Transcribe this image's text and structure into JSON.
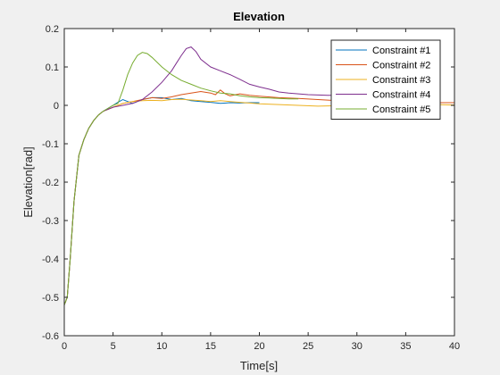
{
  "chart_data": {
    "type": "line",
    "title": "Elevation",
    "xlabel": "Time[s]",
    "ylabel": "Elevation[rad]",
    "xlim": [
      0,
      40
    ],
    "ylim": [
      -0.6,
      0.2
    ],
    "xticks": [
      0,
      5,
      10,
      15,
      20,
      25,
      30,
      35,
      40
    ],
    "yticks": [
      0.2,
      0.1,
      0,
      -0.1,
      -0.2,
      -0.3,
      -0.4,
      -0.5,
      -0.6
    ],
    "xtick_labels": [
      "0",
      "5",
      "10",
      "15",
      "20",
      "25",
      "30",
      "35",
      "40"
    ],
    "ytick_labels": [
      "0.2",
      "0.1",
      "0",
      "-0.1",
      "-0.2",
      "-0.3",
      "-0.4",
      "-0.5",
      "-0.6"
    ],
    "grid": false,
    "legend_position": "top-right",
    "series": [
      {
        "name": "Constraint #1",
        "color": "#0072BD",
        "x": [
          0,
          0.3,
          0.6,
          1.0,
          1.5,
          2.0,
          2.5,
          3.0,
          3.5,
          4.0,
          5.0,
          5.5,
          6.0,
          6.5,
          7.0,
          7.5,
          8.0,
          9.0,
          10.0,
          11.0,
          12.0,
          13.0,
          14.0,
          15.0,
          16.0,
          17.0,
          18.0,
          19.0,
          20.0
        ],
        "y": [
          -0.52,
          -0.5,
          -0.4,
          -0.25,
          -0.13,
          -0.09,
          -0.06,
          -0.04,
          -0.025,
          -0.015,
          0.0,
          0.008,
          0.015,
          0.01,
          0.005,
          0.01,
          0.015,
          0.02,
          0.02,
          0.015,
          0.018,
          0.012,
          0.01,
          0.008,
          0.005,
          0.007,
          0.006,
          0.007,
          0.007
        ]
      },
      {
        "name": "Constraint #2",
        "color": "#D95319",
        "x": [
          0,
          0.3,
          0.6,
          1.0,
          1.5,
          2.0,
          2.5,
          3.0,
          3.5,
          4.0,
          5.0,
          6.0,
          7.0,
          8.0,
          9.0,
          10.0,
          11.0,
          12.0,
          13.0,
          14.0,
          15.0,
          15.5,
          16.0,
          16.5,
          17.0,
          18.0,
          19.0,
          20.0,
          22.0,
          24.0,
          26.0,
          28.0,
          30.0,
          32.0,
          34.0,
          36.0,
          38.0,
          40.0
        ],
        "y": [
          -0.52,
          -0.5,
          -0.4,
          -0.25,
          -0.13,
          -0.09,
          -0.06,
          -0.04,
          -0.025,
          -0.015,
          -0.005,
          0.005,
          0.01,
          0.015,
          0.02,
          0.018,
          0.022,
          0.028,
          0.032,
          0.036,
          0.032,
          0.028,
          0.04,
          0.03,
          0.025,
          0.03,
          0.026,
          0.024,
          0.02,
          0.018,
          0.015,
          0.012,
          0.01,
          0.01,
          0.009,
          0.008,
          0.007,
          0.007
        ]
      },
      {
        "name": "Constraint #3",
        "color": "#EDB120",
        "x": [
          0,
          0.3,
          0.6,
          1.0,
          1.5,
          2.0,
          2.5,
          3.0,
          3.5,
          4.0,
          5.0,
          6.0,
          7.0,
          8.0,
          9.0,
          10.0,
          11.0,
          12.0,
          13.0,
          14.0,
          15.0,
          16.0,
          17.0,
          18.0,
          19.0,
          20.0,
          22.0,
          24.0,
          26.0,
          28.0,
          30.0,
          32.0,
          34.0,
          36.0,
          38.0,
          40.0
        ],
        "y": [
          -0.52,
          -0.5,
          -0.4,
          -0.25,
          -0.13,
          -0.09,
          -0.06,
          -0.04,
          -0.025,
          -0.015,
          -0.005,
          0.005,
          0.01,
          0.012,
          0.013,
          0.012,
          0.015,
          0.016,
          0.014,
          0.012,
          0.01,
          0.012,
          0.01,
          0.008,
          0.006,
          0.004,
          0.002,
          0.0,
          -0.002,
          -0.001,
          0.0,
          0.002,
          0.003,
          0.003,
          0.002,
          0.001
        ]
      },
      {
        "name": "Constraint #4",
        "color": "#7E2F8E",
        "x": [
          0,
          0.3,
          0.6,
          1.0,
          1.5,
          2.0,
          2.5,
          3.0,
          3.5,
          4.0,
          5.0,
          6.0,
          7.0,
          8.0,
          9.0,
          10.0,
          11.0,
          11.5,
          12.0,
          12.5,
          13.0,
          13.5,
          14.0,
          15.0,
          16.0,
          17.0,
          18.0,
          19.0,
          20.0,
          21.0,
          22.0,
          23.0,
          24.0,
          25.0,
          26.0,
          27.0,
          28.0,
          29.0,
          30.0
        ],
        "y": [
          -0.52,
          -0.5,
          -0.4,
          -0.25,
          -0.13,
          -0.09,
          -0.06,
          -0.04,
          -0.025,
          -0.015,
          -0.005,
          0.0,
          0.005,
          0.015,
          0.035,
          0.06,
          0.09,
          0.11,
          0.13,
          0.148,
          0.152,
          0.14,
          0.12,
          0.1,
          0.09,
          0.08,
          0.068,
          0.055,
          0.048,
          0.042,
          0.035,
          0.032,
          0.03,
          0.028,
          0.027,
          0.026,
          0.026,
          0.025,
          0.025
        ]
      },
      {
        "name": "Constraint #5",
        "color": "#77AC30",
        "x": [
          0,
          0.3,
          0.6,
          1.0,
          1.5,
          2.0,
          2.5,
          3.0,
          3.5,
          4.0,
          5.0,
          5.5,
          6.0,
          6.5,
          7.0,
          7.5,
          8.0,
          8.5,
          9.0,
          10.0,
          11.0,
          12.0,
          13.0,
          14.0,
          15.0,
          16.0,
          17.0,
          18.0,
          19.0,
          20.0,
          21.0,
          22.0,
          23.0,
          24.0
        ],
        "y": [
          -0.52,
          -0.5,
          -0.4,
          -0.25,
          -0.13,
          -0.09,
          -0.06,
          -0.04,
          -0.025,
          -0.015,
          0.0,
          0.005,
          0.04,
          0.08,
          0.11,
          0.13,
          0.138,
          0.135,
          0.125,
          0.1,
          0.08,
          0.065,
          0.055,
          0.045,
          0.038,
          0.032,
          0.03,
          0.025,
          0.022,
          0.02,
          0.019,
          0.018,
          0.017,
          0.017
        ]
      }
    ]
  }
}
